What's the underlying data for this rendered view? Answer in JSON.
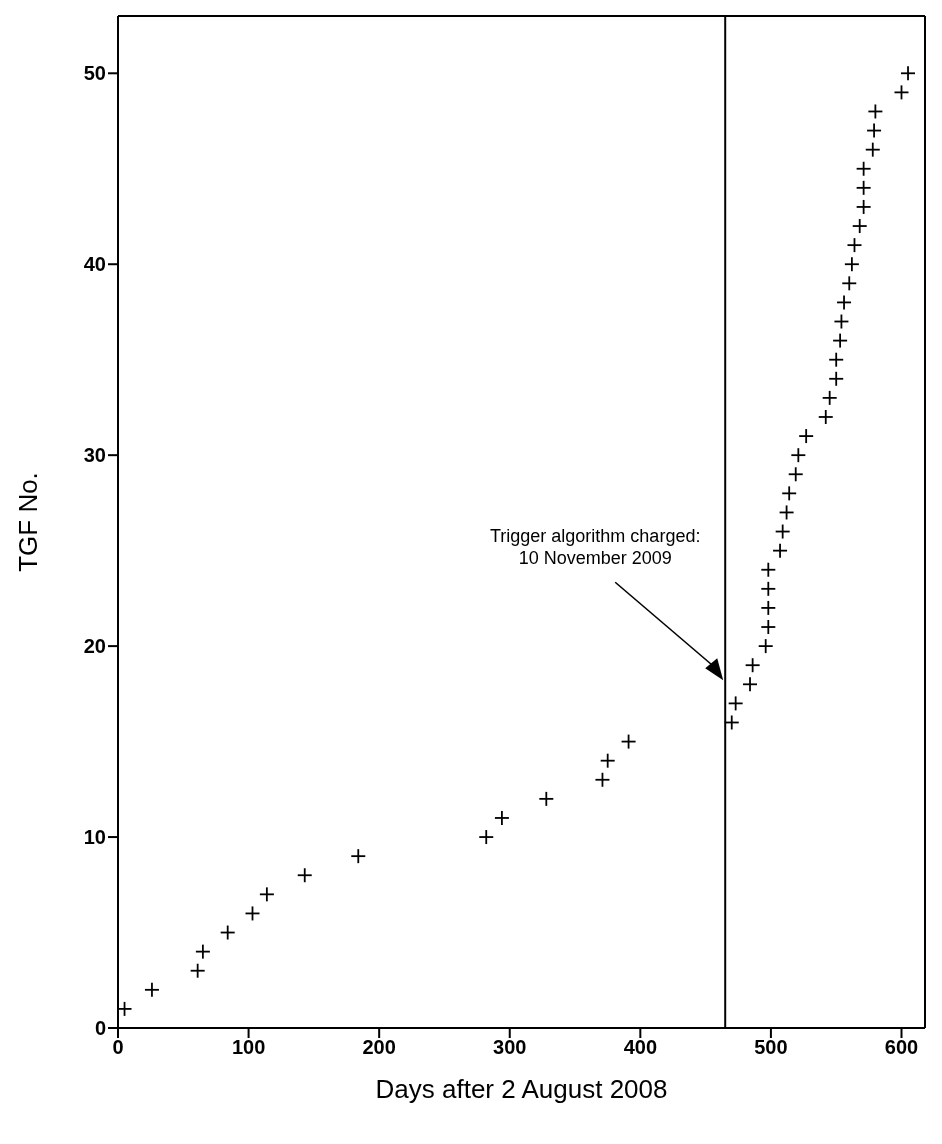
{
  "chart_data": {
    "type": "scatter",
    "xlabel": "Days after 2 August 2008",
    "ylabel": "TGF No.",
    "x": [
      5,
      26,
      61,
      65,
      84,
      103,
      114,
      143,
      184,
      282,
      294,
      328,
      371,
      375,
      391,
      470,
      473,
      484,
      486,
      496,
      498,
      498,
      498,
      498,
      507,
      509,
      512,
      514,
      519,
      521,
      527,
      542,
      545,
      550,
      550,
      553,
      554,
      556,
      560,
      562,
      564,
      568,
      571,
      571,
      571,
      578,
      579,
      580,
      600,
      605
    ],
    "values": [
      1,
      2,
      3,
      4,
      5,
      6,
      7,
      8,
      9,
      10,
      11,
      12,
      13,
      14,
      15,
      16,
      17,
      18,
      19,
      20,
      21,
      22,
      23,
      24,
      25,
      26,
      27,
      28,
      29,
      30,
      31,
      32,
      33,
      34,
      35,
      36,
      37,
      38,
      39,
      40,
      41,
      42,
      43,
      44,
      45,
      46,
      47,
      48,
      49,
      50
    ],
    "color": "#000000",
    "marker": "cross",
    "grid": false,
    "legend": false,
    "xlim": [
      0,
      618
    ],
    "xticks": [
      0,
      100,
      200,
      300,
      400,
      500,
      600
    ],
    "ylim": [
      0,
      53
    ],
    "yticks": [
      0,
      10,
      20,
      30,
      40,
      50
    ],
    "ref_lines": [
      {
        "axis": "x",
        "value": 465,
        "color": "#000000"
      }
    ],
    "annotations": [
      "Trigger algorithm charged:\n10 November 2009"
    ]
  }
}
